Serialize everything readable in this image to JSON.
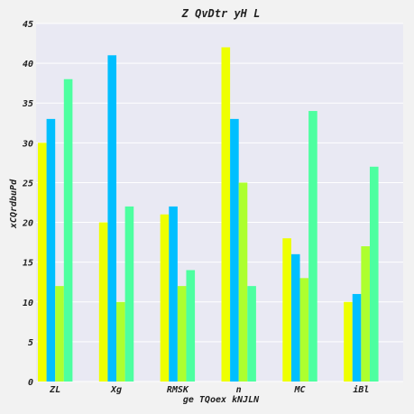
{
  "chart_data": {
    "type": "bar",
    "title": "Z  QvDtr yH L",
    "xlabel": "ge TQoex kNJLN",
    "ylabel": "xCQrdbuPd",
    "categories": [
      "ZL",
      "Xg",
      "RMSK",
      "n",
      "MC",
      "iBl"
    ],
    "ylim": [
      0,
      45
    ],
    "yticks": [
      0,
      5,
      10,
      15,
      20,
      25,
      30,
      35,
      40,
      45
    ],
    "grid": true,
    "legend": "none",
    "series": [
      {
        "color": "#eeff00",
        "values": [
          30,
          20,
          21,
          42,
          18,
          10
        ]
      },
      {
        "color": "#00bfff",
        "values": [
          33,
          41,
          22,
          33,
          16,
          11
        ]
      },
      {
        "color": "#adff2f",
        "values": [
          12,
          10,
          12,
          25,
          13,
          17
        ]
      },
      {
        "color": "#4dffa0",
        "values": [
          38,
          22,
          14,
          12,
          34,
          27
        ]
      }
    ]
  }
}
